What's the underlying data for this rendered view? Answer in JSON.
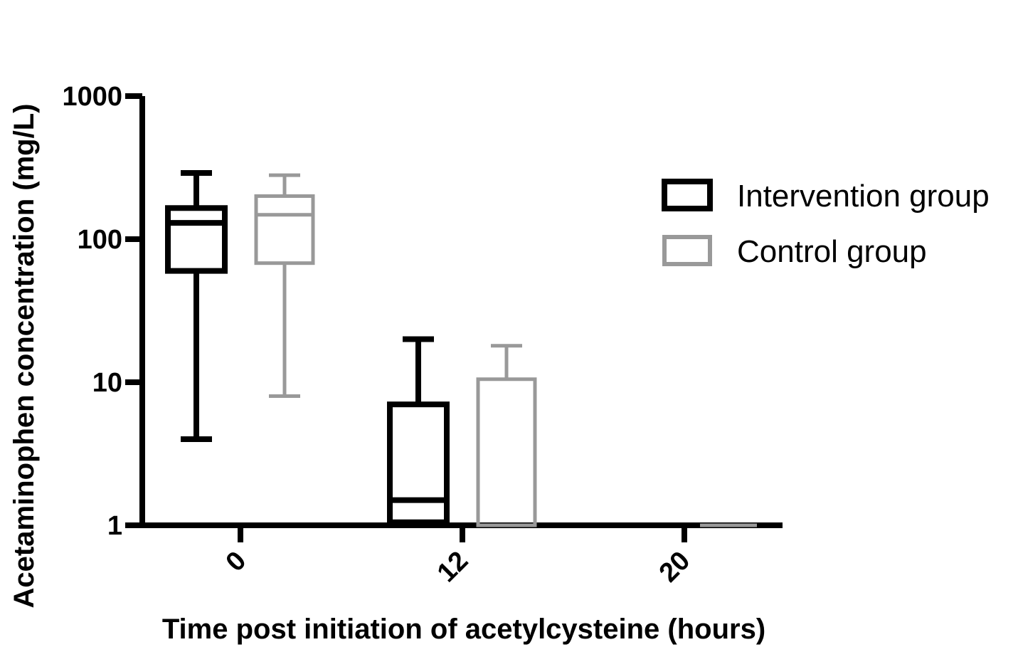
{
  "chart_data": {
    "type": "box",
    "title": "",
    "xlabel": "Time post initiation of acetylcysteine (hours)",
    "ylabel": "Acetaminophen concentration (mg/L)",
    "yscale": "log",
    "ylim": [
      1,
      1000
    ],
    "ytick_labels": [
      "1",
      "10",
      "100",
      "1000"
    ],
    "categories": [
      "0",
      "12",
      "20"
    ],
    "legend_position": "top-right",
    "series": [
      {
        "name": "Intervention group",
        "color": "#000000",
        "boxes": [
          {
            "category": "0",
            "min": 4,
            "q1": 60,
            "median": 130,
            "q3": 165,
            "max": 290
          },
          {
            "category": "12",
            "min": 1,
            "q1": 1.05,
            "median": 1.5,
            "q3": 7,
            "max": 20
          },
          {
            "category": "20",
            "min": 1,
            "q1": 1,
            "median": 1,
            "q3": 1,
            "max": 1
          }
        ]
      },
      {
        "name": "Control group",
        "color": "#999999",
        "boxes": [
          {
            "category": "0",
            "min": 8,
            "q1": 68,
            "median": 148,
            "q3": 200,
            "max": 280
          },
          {
            "category": "12",
            "min": 1,
            "q1": 1,
            "median": 1,
            "q3": 10.5,
            "max": 18
          },
          {
            "category": "20",
            "min": 1,
            "q1": 1,
            "median": 1,
            "q3": 1,
            "max": 1
          }
        ]
      }
    ]
  }
}
